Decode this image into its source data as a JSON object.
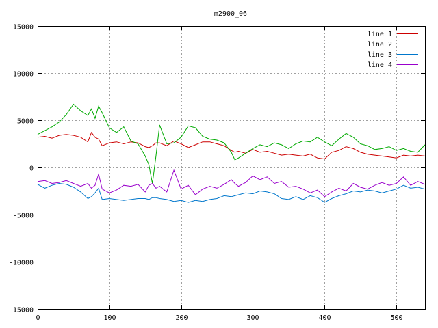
{
  "chart_data": {
    "type": "line",
    "title": "m2900_06",
    "xlim": [
      0,
      540
    ],
    "ylim": [
      -15000,
      15000
    ],
    "xticks": [
      0,
      100,
      200,
      300,
      400,
      500
    ],
    "yticks": [
      -15000,
      -10000,
      -5000,
      0,
      5000,
      10000,
      15000
    ],
    "grid": true,
    "legend_position": "top-right",
    "x": [
      0,
      10,
      20,
      30,
      40,
      50,
      60,
      70,
      75,
      80,
      85,
      90,
      100,
      110,
      120,
      130,
      140,
      150,
      155,
      160,
      165,
      170,
      180,
      190,
      200,
      210,
      220,
      230,
      240,
      250,
      260,
      270,
      275,
      280,
      290,
      300,
      310,
      320,
      330,
      340,
      350,
      360,
      370,
      380,
      390,
      400,
      410,
      420,
      430,
      440,
      450,
      460,
      470,
      480,
      490,
      500,
      510,
      520,
      530,
      540
    ],
    "series": [
      {
        "name": "line 1",
        "color": "#cc0000",
        "values": [
          3200,
          3300,
          3100,
          3400,
          3500,
          3400,
          3200,
          2700,
          3700,
          3200,
          3000,
          2300,
          2600,
          2700,
          2500,
          2700,
          2600,
          2200,
          2100,
          2300,
          2600,
          2600,
          2300,
          2800,
          2500,
          2100,
          2400,
          2700,
          2700,
          2500,
          2300,
          1800,
          1600,
          1700,
          1500,
          1900,
          1600,
          1700,
          1500,
          1300,
          1400,
          1300,
          1200,
          1400,
          1000,
          900,
          1600,
          1800,
          2200,
          2000,
          1600,
          1400,
          1300,
          1200,
          1100,
          1000,
          1300,
          1200,
          1300,
          1200
        ]
      },
      {
        "name": "line 2",
        "color": "#00aa00",
        "values": [
          3500,
          3900,
          4300,
          4800,
          5600,
          6700,
          6000,
          5500,
          6200,
          5200,
          6500,
          5800,
          4200,
          3700,
          4300,
          2800,
          2500,
          1200,
          300,
          -1700,
          1200,
          4500,
          2500,
          2600,
          3200,
          4400,
          4200,
          3300,
          3000,
          2900,
          2600,
          1600,
          800,
          1000,
          1500,
          2000,
          2400,
          2200,
          2600,
          2400,
          2000,
          2500,
          2800,
          2700,
          3200,
          2700,
          2300,
          3000,
          3600,
          3200,
          2500,
          2300,
          1900,
          2000,
          2200,
          1800,
          2000,
          1700,
          1600,
          2400
        ]
      },
      {
        "name": "line 3",
        "color": "#0077cc",
        "values": [
          -1800,
          -2200,
          -1900,
          -1700,
          -1800,
          -2100,
          -2600,
          -3300,
          -3100,
          -2700,
          -2200,
          -3400,
          -3300,
          -3400,
          -3500,
          -3400,
          -3300,
          -3300,
          -3400,
          -3200,
          -3200,
          -3300,
          -3400,
          -3600,
          -3500,
          -3700,
          -3500,
          -3600,
          -3400,
          -3300,
          -3000,
          -3100,
          -3000,
          -2900,
          -2700,
          -2800,
          -2500,
          -2600,
          -2800,
          -3300,
          -3400,
          -3100,
          -3400,
          -3000,
          -3200,
          -3700,
          -3300,
          -3000,
          -2800,
          -2500,
          -2600,
          -2400,
          -2500,
          -2700,
          -2500,
          -2300,
          -1900,
          -2200,
          -2100,
          -2300
        ]
      },
      {
        "name": "line 4",
        "color": "#9900cc",
        "values": [
          -1500,
          -1400,
          -1700,
          -1600,
          -1400,
          -1700,
          -2000,
          -1700,
          -2200,
          -1900,
          -700,
          -2300,
          -2700,
          -2400,
          -1900,
          -2000,
          -1800,
          -2600,
          -1900,
          -1700,
          -2200,
          -2000,
          -2600,
          -300,
          -2300,
          -1900,
          -2900,
          -2300,
          -2000,
          -2200,
          -1800,
          -1300,
          -1700,
          -2000,
          -1600,
          -900,
          -1300,
          -1000,
          -1700,
          -1500,
          -2100,
          -2000,
          -2300,
          -2700,
          -2400,
          -3100,
          -2600,
          -2200,
          -2500,
          -1700,
          -2100,
          -2300,
          -1900,
          -1600,
          -1900,
          -1700,
          -1000,
          -1900,
          -1500,
          -1800
        ]
      }
    ]
  }
}
